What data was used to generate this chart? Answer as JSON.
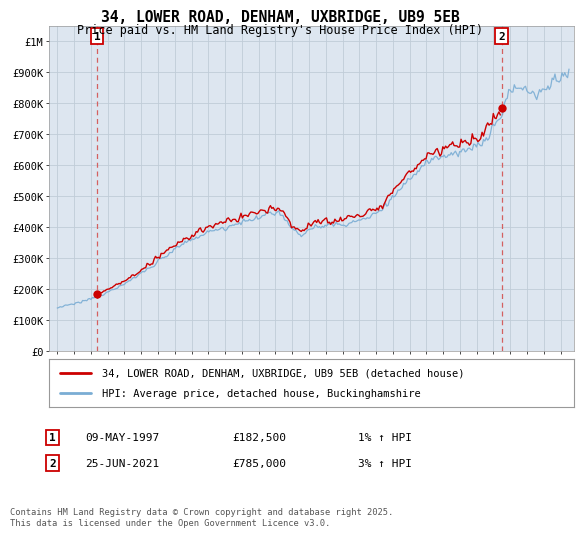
{
  "title": "34, LOWER ROAD, DENHAM, UXBRIDGE, UB9 5EB",
  "subtitle": "Price paid vs. HM Land Registry's House Price Index (HPI)",
  "legend_line1": "34, LOWER ROAD, DENHAM, UXBRIDGE, UB9 5EB (detached house)",
  "legend_line2": "HPI: Average price, detached house, Buckinghamshire",
  "annotation1_label": "1",
  "annotation1_date": "09-MAY-1997",
  "annotation1_price": "£182,500",
  "annotation1_hpi": "1% ↑ HPI",
  "annotation1_year": 1997.36,
  "annotation1_value": 182500,
  "annotation2_label": "2",
  "annotation2_date": "25-JUN-2021",
  "annotation2_price": "£785,000",
  "annotation2_hpi": "3% ↑ HPI",
  "annotation2_year": 2021.48,
  "annotation2_value": 785000,
  "hpi_color": "#7aadd4",
  "price_color": "#cc0000",
  "dashed_color": "#d46060",
  "bg_color": "#dde6f0",
  "plot_bg": "#ffffff",
  "grid_color": "#c0ccd8",
  "footer_text": "Contains HM Land Registry data © Crown copyright and database right 2025.\nThis data is licensed under the Open Government Licence v3.0.",
  "ylim": [
    0,
    1050000
  ],
  "yticks": [
    0,
    100000,
    200000,
    300000,
    400000,
    500000,
    600000,
    700000,
    800000,
    900000,
    1000000
  ],
  "ytick_labels": [
    "£0",
    "£100K",
    "£200K",
    "£300K",
    "£400K",
    "£500K",
    "£600K",
    "£700K",
    "£800K",
    "£900K",
    "£1M"
  ],
  "xlim_start": 1994.5,
  "xlim_end": 2025.8,
  "xtick_years": [
    1995,
    1996,
    1997,
    1998,
    1999,
    2000,
    2001,
    2002,
    2003,
    2004,
    2005,
    2006,
    2007,
    2008,
    2009,
    2010,
    2011,
    2012,
    2013,
    2014,
    2015,
    2016,
    2017,
    2018,
    2019,
    2020,
    2021,
    2022,
    2023,
    2024,
    2025
  ]
}
